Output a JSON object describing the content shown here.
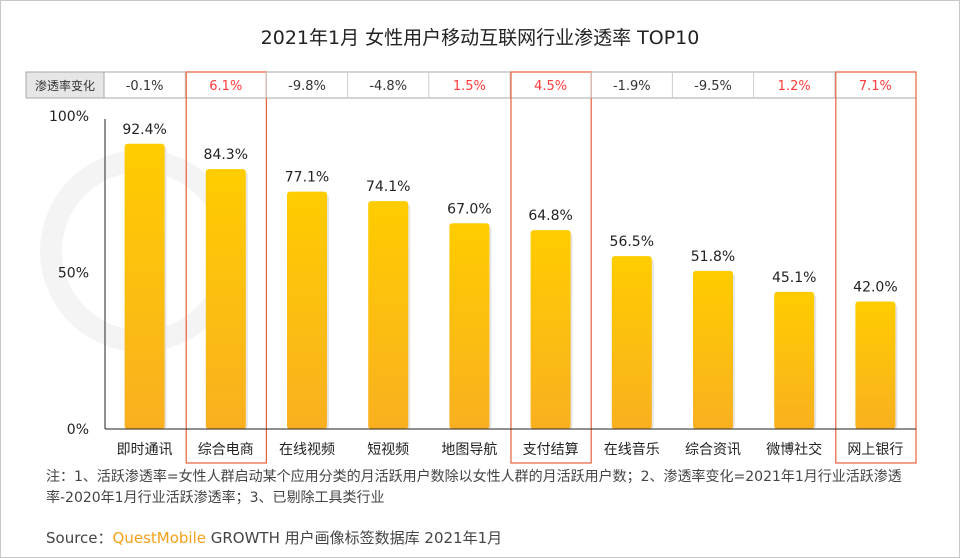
{
  "title": "2021年1月 女性用户移动互联网行业渗透率 TOP10",
  "table": {
    "row_label": "渗透率变化"
  },
  "chart_data": {
    "type": "bar",
    "title": "2021年1月 女性用户移动互联网行业渗透率 TOP10",
    "categories": [
      "即时通讯",
      "综合电商",
      "在线视频",
      "短视频",
      "地图导航",
      "支付结算",
      "在线音乐",
      "综合资讯",
      "微博社交",
      "网上银行"
    ],
    "values": [
      92.4,
      84.3,
      77.1,
      74.1,
      67.0,
      64.8,
      56.5,
      51.8,
      45.1,
      42.0
    ],
    "value_labels": [
      "92.4%",
      "84.3%",
      "77.1%",
      "74.1%",
      "67.0%",
      "64.8%",
      "56.5%",
      "51.8%",
      "45.1%",
      "42.0%"
    ],
    "change_labels": [
      "-0.1%",
      "6.1%",
      "-9.8%",
      "-4.8%",
      "1.5%",
      "4.5%",
      "-1.9%",
      "-9.5%",
      "1.2%",
      "7.1%"
    ],
    "highlighted": [
      "综合电商",
      "支付结算",
      "网上银行"
    ],
    "yticks": [
      "0%",
      "50%",
      "100%"
    ],
    "ylim": [
      0,
      100
    ],
    "grid": false,
    "colors": {
      "bar_top": "#ffcc00",
      "bar_bottom": "#f9b020",
      "positive_change": "#ff3b3b",
      "negative_change": "#333333",
      "highlight_border": "#e8603c"
    }
  },
  "note": "注：1、活跃渗透率=女性人群启动某个应用分类的月活跃用户数除以女性人群的月活跃用户数；2、渗透率变化=2021年1月行业活跃渗透率-2020年1月行业活跃渗透率；3、已剔除工具类行业",
  "source": {
    "prefix": "Source：",
    "brand": "QuestMobile",
    "rest": " GROWTH 用户画像标签数据库 2021年1月"
  },
  "watermark": "QUESTMOBILE"
}
